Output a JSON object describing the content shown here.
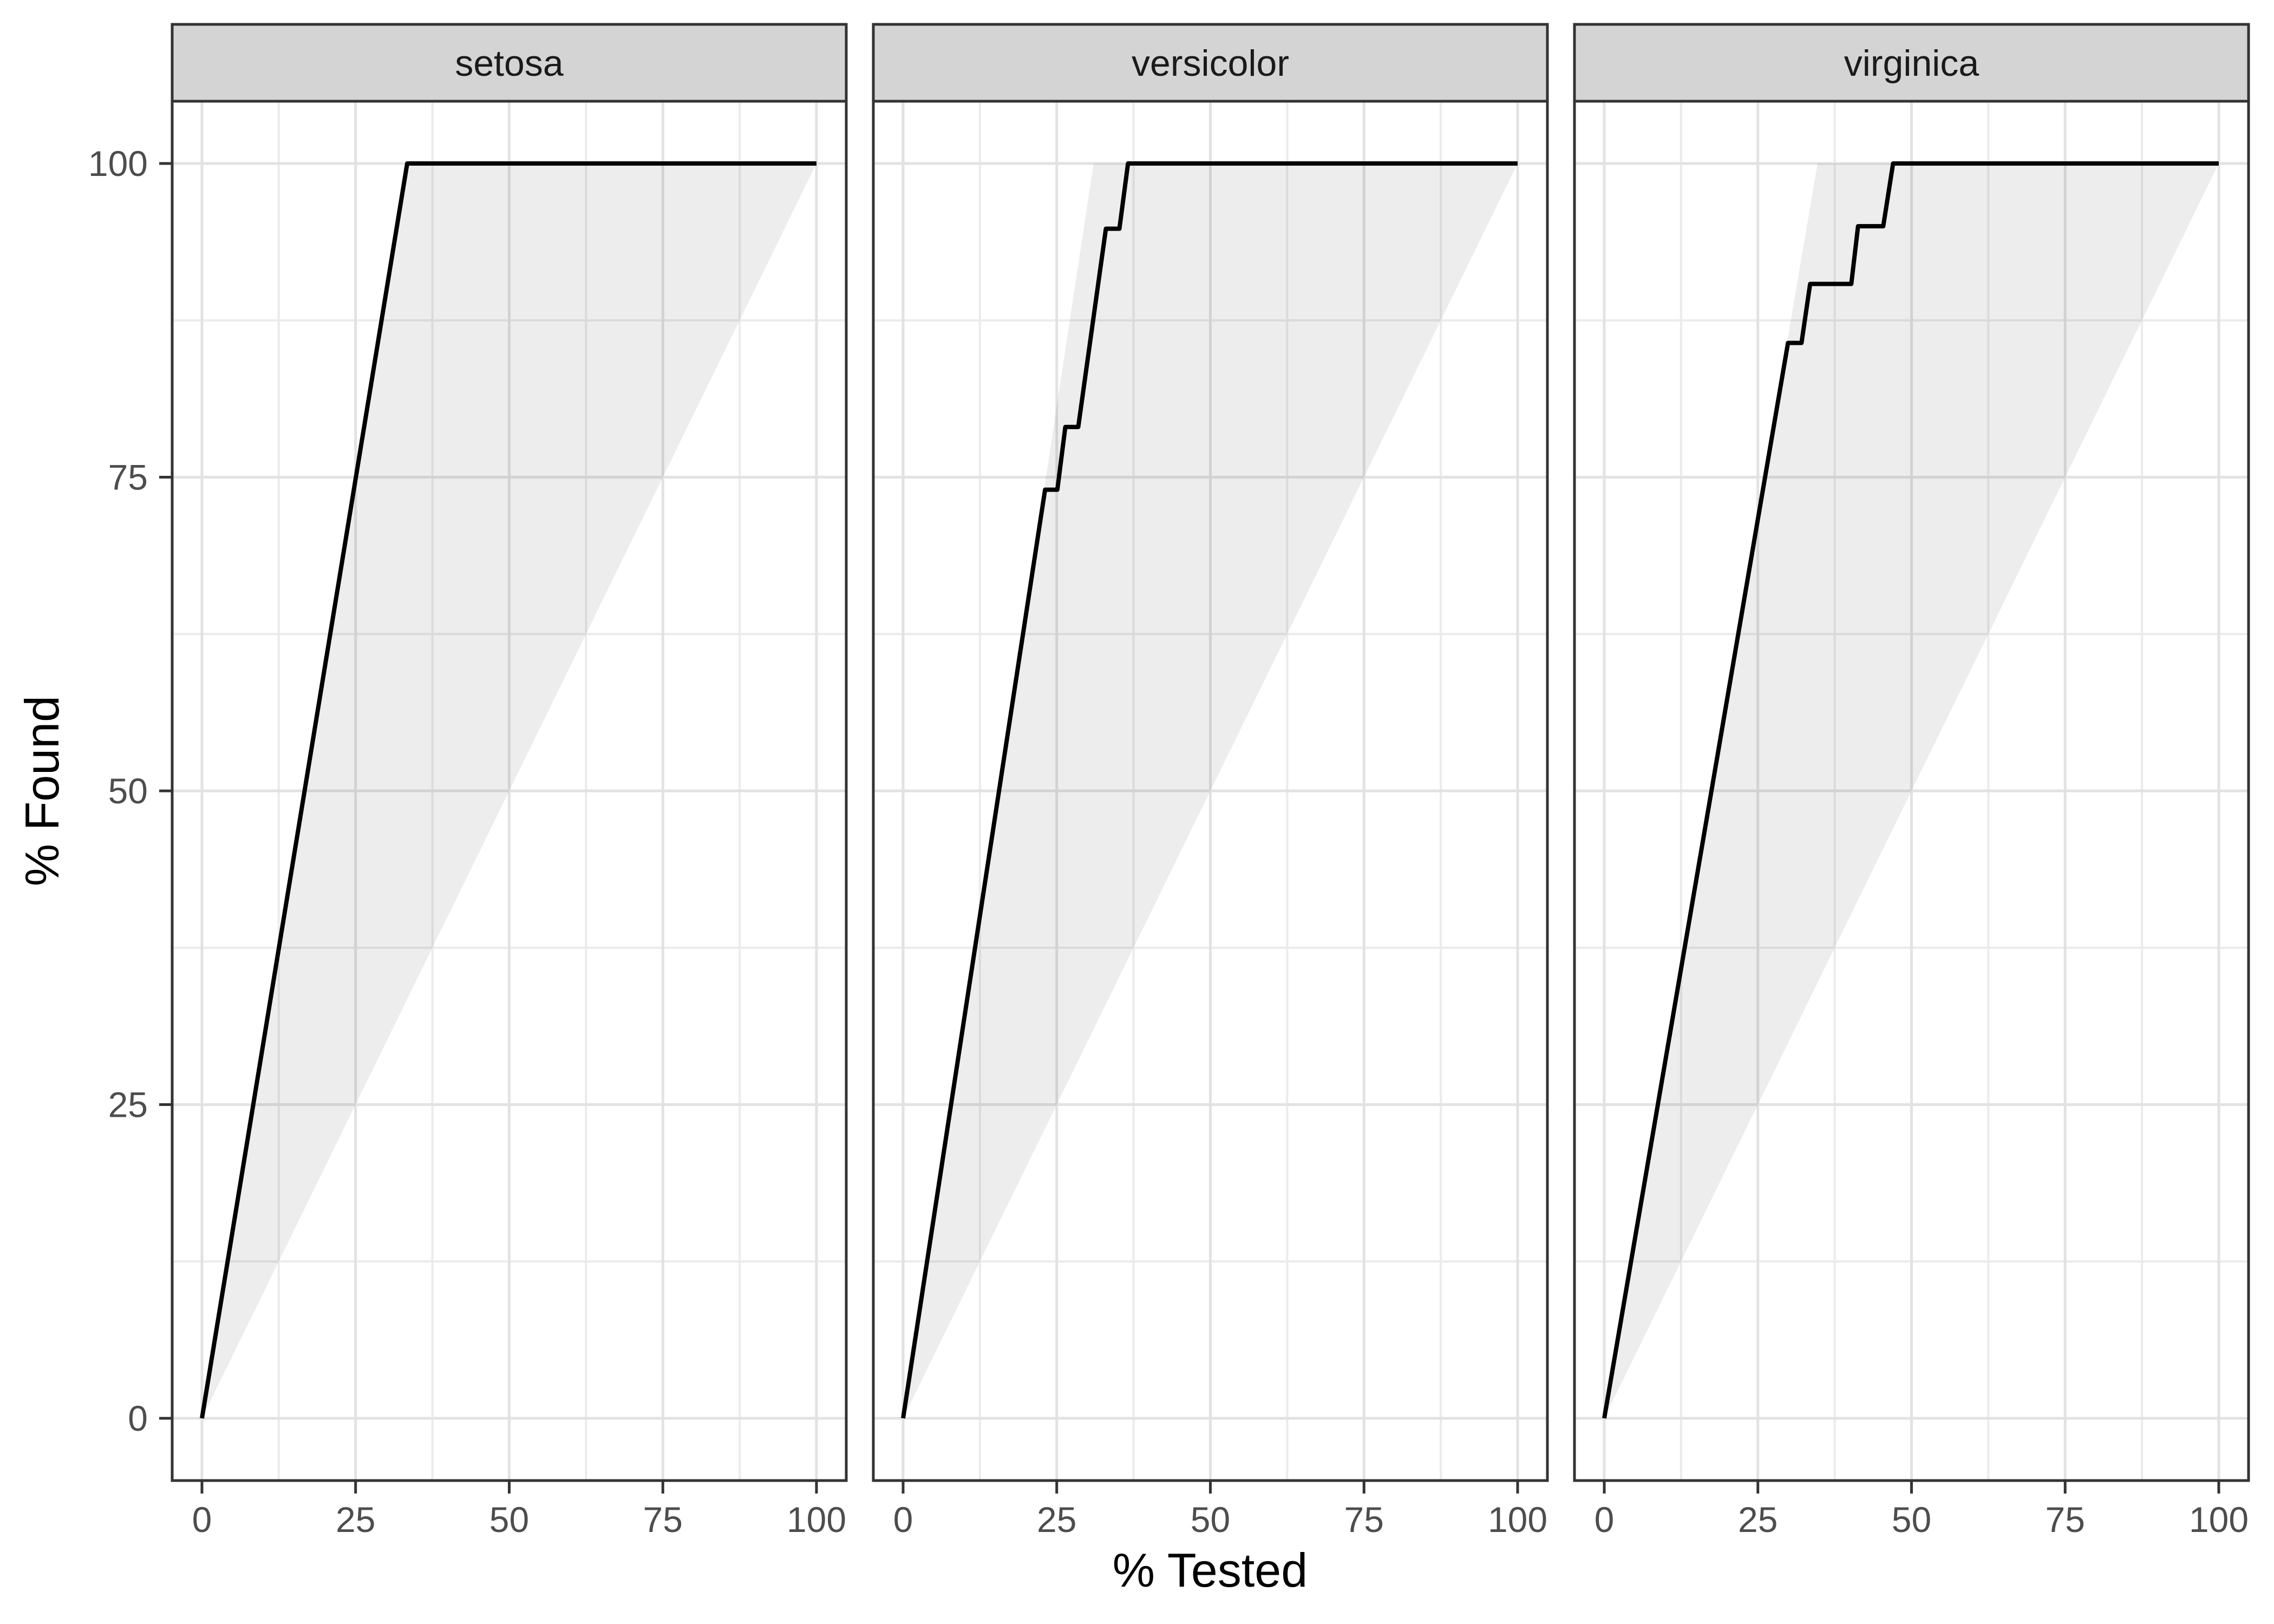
{
  "chart_data": {
    "type": "line",
    "title": "",
    "xlabel": "% Tested",
    "ylabel": "% Found",
    "xlim": [
      0,
      100
    ],
    "ylim": [
      0,
      100
    ],
    "x_ticks": [
      0,
      25,
      50,
      75,
      100
    ],
    "y_ticks": [
      0,
      25,
      50,
      75,
      100
    ],
    "grid": "on",
    "minor_grid": "on",
    "legend": "none",
    "facets": [
      {
        "label": "setosa",
        "wedge_apex_x": 33.4,
        "curve": [
          [
            0,
            0
          ],
          [
            33.4,
            100
          ],
          [
            100,
            100
          ]
        ]
      },
      {
        "label": "versicolor",
        "wedge_apex_x": 31.0,
        "curve": [
          [
            0,
            0
          ],
          [
            23.1,
            74
          ],
          [
            25.1,
            74
          ],
          [
            26.4,
            79
          ],
          [
            28.5,
            79
          ],
          [
            33,
            94.8
          ],
          [
            35.2,
            94.8
          ],
          [
            36.6,
            100
          ],
          [
            100,
            100
          ]
        ]
      },
      {
        "label": "virginica",
        "wedge_apex_x": 34.7,
        "curve": [
          [
            0,
            0
          ],
          [
            29.9,
            85.7
          ],
          [
            32.1,
            85.7
          ],
          [
            33.5,
            90.4
          ],
          [
            40.2,
            90.4
          ],
          [
            41.3,
            95
          ],
          [
            45.4,
            95
          ],
          [
            47,
            100
          ],
          [
            100,
            100
          ]
        ]
      }
    ],
    "wedge_note": "shaded region bounded above-left by perfect curve (0,0)-(apex,100)-(100,100) and below by diagonal baseline (100,100)-(0,0)"
  },
  "colors": {
    "background": "#ffffff",
    "curve": "#000000",
    "wedge_fill": "rgba(0,0,0,0.07)",
    "strip_fill": "#d4d4d4",
    "panel_border": "#333333",
    "grid_major": "#e2e2e2",
    "grid_minor": "#ebebeb",
    "tick_mark": "#333333",
    "tick_label": "#4d4d4d",
    "axis_title": "#000000",
    "strip_text": "#1a1a1a"
  }
}
